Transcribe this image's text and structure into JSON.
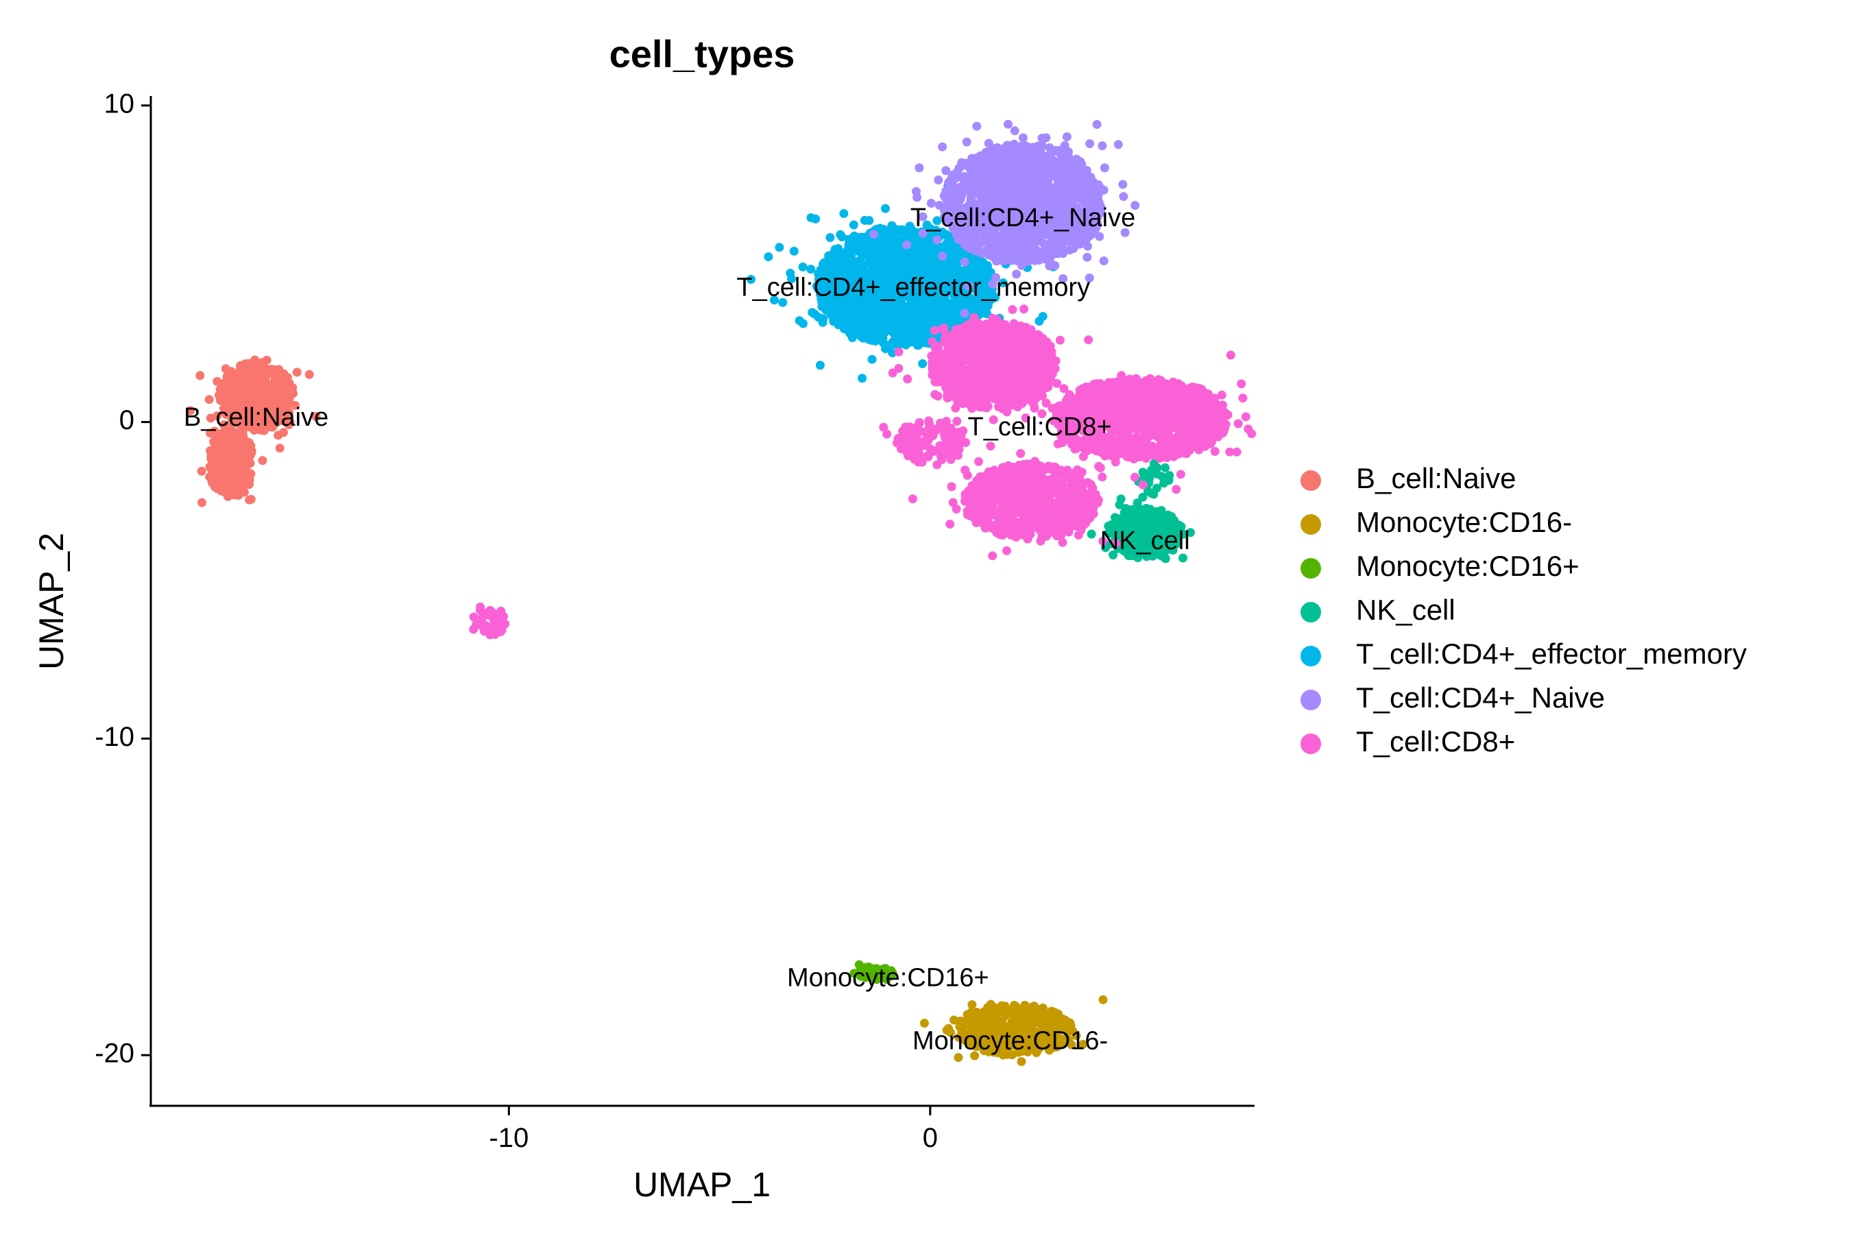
{
  "chart_data": {
    "type": "scatter",
    "title": "cell_types",
    "xlabel": "UMAP_1",
    "ylabel": "UMAP_2",
    "xlim": [
      -18.5,
      7.7
    ],
    "ylim": [
      -21.6,
      10.3
    ],
    "xticks": [
      -10,
      0
    ],
    "yticks": [
      10,
      0,
      -10,
      -20
    ],
    "xtick_labels": [
      "-10",
      "0"
    ],
    "ytick_labels": [
      "10",
      "0",
      "-10",
      "-20"
    ],
    "grid": false,
    "legend_position": "right",
    "series": [
      {
        "name": "B_cell:Naive",
        "color": "#F8766D",
        "clusters": [
          {
            "cx": -16.0,
            "cy": 0.8,
            "rx": 0.9,
            "ry": 1.1,
            "n": 420
          },
          {
            "cx": -16.6,
            "cy": -1.3,
            "rx": 0.55,
            "ry": 1.1,
            "n": 300
          }
        ]
      },
      {
        "name": "Monocyte:CD16-",
        "color": "#C49A00",
        "clusters": [
          {
            "cx": 2.0,
            "cy": -19.2,
            "rx": 1.4,
            "ry": 0.8,
            "n": 420
          }
        ]
      },
      {
        "name": "Monocyte:CD16+",
        "color": "#53B400",
        "clusters": [
          {
            "cx": -1.3,
            "cy": -17.4,
            "rx": 0.45,
            "ry": 0.2,
            "n": 60
          }
        ]
      },
      {
        "name": "NK_cell",
        "color": "#00C094",
        "clusters": [
          {
            "cx": 5.1,
            "cy": -3.5,
            "rx": 0.9,
            "ry": 0.8,
            "n": 320
          },
          {
            "cx": 5.3,
            "cy": -1.8,
            "rx": 0.4,
            "ry": 0.5,
            "n": 25
          }
        ]
      },
      {
        "name": "T_cell:CD4+_effector_memory",
        "color": "#00B6EB",
        "clusters": [
          {
            "cx": -0.6,
            "cy": 4.3,
            "rx": 2.1,
            "ry": 1.9,
            "n": 1600
          }
        ]
      },
      {
        "name": "T_cell:CD4+_Naive",
        "color": "#A58AFF",
        "clusters": [
          {
            "cx": 2.2,
            "cy": 6.9,
            "rx": 1.9,
            "ry": 1.9,
            "n": 1400
          }
        ]
      },
      {
        "name": "T_cell:CD8+",
        "color": "#FB61D7",
        "clusters": [
          {
            "cx": 1.5,
            "cy": 1.8,
            "rx": 1.5,
            "ry": 1.4,
            "n": 900
          },
          {
            "cx": 5.0,
            "cy": 0.1,
            "rx": 2.1,
            "ry": 1.3,
            "n": 1000
          },
          {
            "cx": 2.4,
            "cy": -2.5,
            "rx": 1.6,
            "ry": 1.2,
            "n": 700
          },
          {
            "cx": 0.0,
            "cy": -0.6,
            "rx": 0.9,
            "ry": 0.7,
            "n": 120
          },
          {
            "cx": -10.5,
            "cy": -6.3,
            "rx": 0.45,
            "ry": 0.55,
            "n": 30
          }
        ]
      }
    ],
    "cluster_labels": [
      {
        "text": "B_cell:Naive",
        "x": -16.0,
        "y": 0.1
      },
      {
        "text": "T_cell:CD4+_Naive",
        "x": 2.2,
        "y": 6.4
      },
      {
        "text": "T_cell:CD4+_effector_memory",
        "x": -0.4,
        "y": 4.2
      },
      {
        "text": "T_cell:CD8+",
        "x": 2.6,
        "y": -0.2
      },
      {
        "text": "NK_cell",
        "x": 5.1,
        "y": -3.8
      },
      {
        "text": "Monocyte:CD16+",
        "x": -1.0,
        "y": -17.6
      },
      {
        "text": "Monocyte:CD16-",
        "x": 1.9,
        "y": -19.6
      }
    ]
  }
}
